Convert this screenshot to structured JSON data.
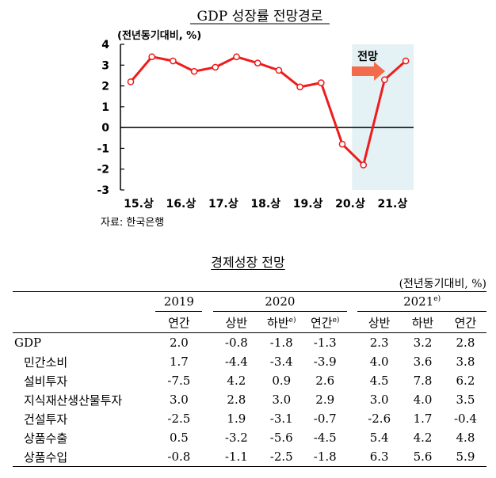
{
  "chart_data": {
    "type": "line",
    "title": "GDP 성장률 전망경로",
    "ylabel": "(전년동기대비, %)",
    "ylim": [
      -3,
      4
    ],
    "yticks": [
      "4",
      "3",
      "2",
      "1",
      "0",
      "-1",
      "-2",
      "-3"
    ],
    "categories": [
      "15.상",
      "15.하",
      "16.상",
      "16.하",
      "17.상",
      "17.하",
      "18.상",
      "18.하",
      "19.상",
      "19.하",
      "20.상",
      "20.하",
      "21.상",
      "21.하"
    ],
    "xtick_labels": [
      "15.상",
      "16.상",
      "17.상",
      "18.상",
      "19.상",
      "20.상",
      "21.상"
    ],
    "series": [
      {
        "values": [
          2.2,
          3.4,
          3.2,
          2.7,
          2.9,
          3.4,
          3.1,
          2.75,
          1.95,
          2.15,
          -0.8,
          -1.8,
          2.3,
          3.2
        ]
      }
    ],
    "forecast": {
      "label": "전망",
      "start_category": "20.하"
    },
    "line_color": "#ee1c1c",
    "forecast_band_color": "#e4f1f5",
    "arrow_color": "#f26b4b",
    "grid": false
  },
  "source": "자료: 한국은행",
  "table": {
    "title": "경제성장 전망",
    "unit": "(전년동기대비, %)",
    "years": [
      "2019",
      "2020",
      "2021"
    ],
    "year_2021_sup": "e)",
    "subheaders": [
      {
        "text": "연간",
        "sup": ""
      },
      {
        "text": "상반",
        "sup": ""
      },
      {
        "text": "하반",
        "sup": "e)"
      },
      {
        "text": "연간",
        "sup": "e)"
      },
      {
        "text": "상반",
        "sup": ""
      },
      {
        "text": "하반",
        "sup": ""
      },
      {
        "text": "연간",
        "sup": ""
      }
    ],
    "rows": [
      {
        "label": "GDP",
        "values": [
          "2.0",
          "-0.8",
          "-1.8",
          "-1.3",
          "2.3",
          "3.2",
          "2.8"
        ]
      },
      {
        "label": "민간소비",
        "values": [
          "1.7",
          "-4.4",
          "-3.4",
          "-3.9",
          "4.0",
          "3.6",
          "3.8"
        ]
      },
      {
        "label": "설비투자",
        "values": [
          "-7.5",
          "4.2",
          "0.9",
          "2.6",
          "4.5",
          "7.8",
          "6.2"
        ]
      },
      {
        "label": "지식재산생산물투자",
        "values": [
          "3.0",
          "2.8",
          "3.0",
          "2.9",
          "3.0",
          "4.0",
          "3.5"
        ]
      },
      {
        "label": "건설투자",
        "values": [
          "-2.5",
          "1.9",
          "-3.1",
          "-0.7",
          "-2.6",
          "1.7",
          "-0.4"
        ]
      },
      {
        "label": "상품수출",
        "values": [
          "0.5",
          "-3.2",
          "-5.6",
          "-4.5",
          "5.4",
          "4.2",
          "4.8"
        ]
      },
      {
        "label": "상품수입",
        "values": [
          "-0.8",
          "-1.1",
          "-2.5",
          "-1.8",
          "6.3",
          "5.6",
          "5.9"
        ]
      }
    ]
  }
}
